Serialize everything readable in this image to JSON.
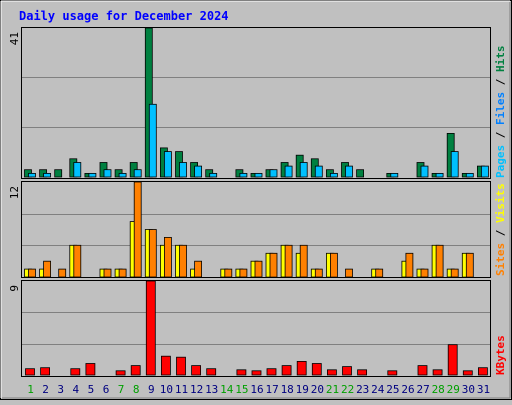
{
  "chart_data": [
    {
      "type": "bar",
      "title": "Daily usage for December 2024",
      "panel": "hits-files-pages",
      "categories": [
        "1",
        "2",
        "3",
        "4",
        "5",
        "6",
        "7",
        "8",
        "9",
        "10",
        "11",
        "12",
        "13",
        "14",
        "15",
        "16",
        "17",
        "18",
        "19",
        "20",
        "21",
        "22",
        "23",
        "24",
        "25",
        "26",
        "27",
        "28",
        "29",
        "30",
        "31"
      ],
      "weekend_days": [
        "1",
        "7",
        "8",
        "14",
        "15",
        "21",
        "22",
        "28",
        "29"
      ],
      "ymax_label": "41",
      "ylim": [
        0,
        41
      ],
      "grid": true,
      "series": [
        {
          "name": "Hits",
          "color": "#008040",
          "values": [
            2,
            2,
            2,
            5,
            1,
            4,
            2,
            4,
            41,
            8,
            7,
            4,
            2,
            0,
            2,
            1,
            2,
            4,
            6,
            5,
            2,
            4,
            2,
            0,
            1,
            0,
            4,
            1,
            12,
            1,
            3
          ]
        },
        {
          "name": "Files",
          "color": "#0080ff",
          "values": [
            1,
            1,
            0,
            4,
            1,
            2,
            1,
            2,
            20,
            7,
            4,
            3,
            1,
            0,
            1,
            1,
            2,
            3,
            4,
            3,
            1,
            3,
            0,
            0,
            1,
            0,
            3,
            1,
            7,
            1,
            3
          ]
        },
        {
          "name": "Pages",
          "color": "#00c0ff",
          "values": [
            1,
            1,
            0,
            4,
            1,
            2,
            1,
            2,
            20,
            7,
            4,
            3,
            1,
            0,
            1,
            1,
            2,
            3,
            4,
            3,
            1,
            3,
            0,
            0,
            1,
            0,
            3,
            1,
            7,
            1,
            3
          ]
        }
      ]
    },
    {
      "type": "bar",
      "panel": "visits-sites",
      "categories": [
        "1",
        "2",
        "3",
        "4",
        "5",
        "6",
        "7",
        "8",
        "9",
        "10",
        "11",
        "12",
        "13",
        "14",
        "15",
        "16",
        "17",
        "18",
        "19",
        "20",
        "21",
        "22",
        "23",
        "24",
        "25",
        "26",
        "27",
        "28",
        "29",
        "30",
        "31"
      ],
      "ymax_label": "12",
      "ylim": [
        0,
        12
      ],
      "grid": true,
      "series": [
        {
          "name": "Visits",
          "color": "#ffff00",
          "values": [
            1,
            1,
            0,
            4,
            0,
            1,
            1,
            7,
            6,
            4,
            4,
            1,
            0,
            1,
            1,
            2,
            3,
            4,
            3,
            1,
            3,
            0,
            0,
            1,
            0,
            2,
            1,
            4,
            1,
            3,
            0
          ]
        },
        {
          "name": "Sites",
          "color": "#ff8000",
          "values": [
            1,
            2,
            1,
            4,
            0,
            1,
            1,
            12,
            6,
            5,
            4,
            2,
            0,
            1,
            1,
            2,
            3,
            4,
            4,
            1,
            3,
            1,
            0,
            1,
            0,
            3,
            1,
            4,
            1,
            3,
            0
          ]
        }
      ]
    },
    {
      "type": "bar",
      "panel": "kbytes",
      "categories": [
        "1",
        "2",
        "3",
        "4",
        "5",
        "6",
        "7",
        "8",
        "9",
        "10",
        "11",
        "12",
        "13",
        "14",
        "15",
        "16",
        "17",
        "18",
        "19",
        "20",
        "21",
        "22",
        "23",
        "24",
        "25",
        "26",
        "27",
        "28",
        "29",
        "30",
        "31"
      ],
      "ymax_label": "9",
      "ylim": [
        0,
        9
      ],
      "grid": true,
      "series": [
        {
          "name": "KBytes",
          "color": "#ff0000",
          "values": [
            0.6,
            0.7,
            0,
            0.6,
            1.1,
            0,
            0.4,
            0.9,
            9,
            1.8,
            1.7,
            0.9,
            0.6,
            0,
            0.5,
            0.4,
            0.6,
            0.9,
            1.3,
            1.1,
            0.5,
            0.8,
            0.5,
            0,
            0.4,
            0,
            0.9,
            0.5,
            2.9,
            0.4,
            0.7
          ]
        }
      ]
    }
  ],
  "legend_right": {
    "panel1": [
      {
        "text": "Pages",
        "color": "#00c0ff"
      },
      {
        "text": " / ",
        "color": "#000000"
      },
      {
        "text": "Files",
        "color": "#0080ff"
      },
      {
        "text": " / ",
        "color": "#000000"
      },
      {
        "text": "Hits",
        "color": "#008040"
      }
    ],
    "panel2": [
      {
        "text": "Sites",
        "color": "#ff8000"
      },
      {
        "text": " / ",
        "color": "#000000"
      },
      {
        "text": "Visits",
        "color": "#ffff00"
      }
    ],
    "panel3": [
      {
        "text": "KBytes",
        "color": "#ff0000"
      }
    ]
  },
  "colors": {
    "background": "#c0c0c0",
    "grid": "#808080",
    "title": "#0000ff",
    "weekday_label": "#000080",
    "weekend_label": "#00a000"
  }
}
